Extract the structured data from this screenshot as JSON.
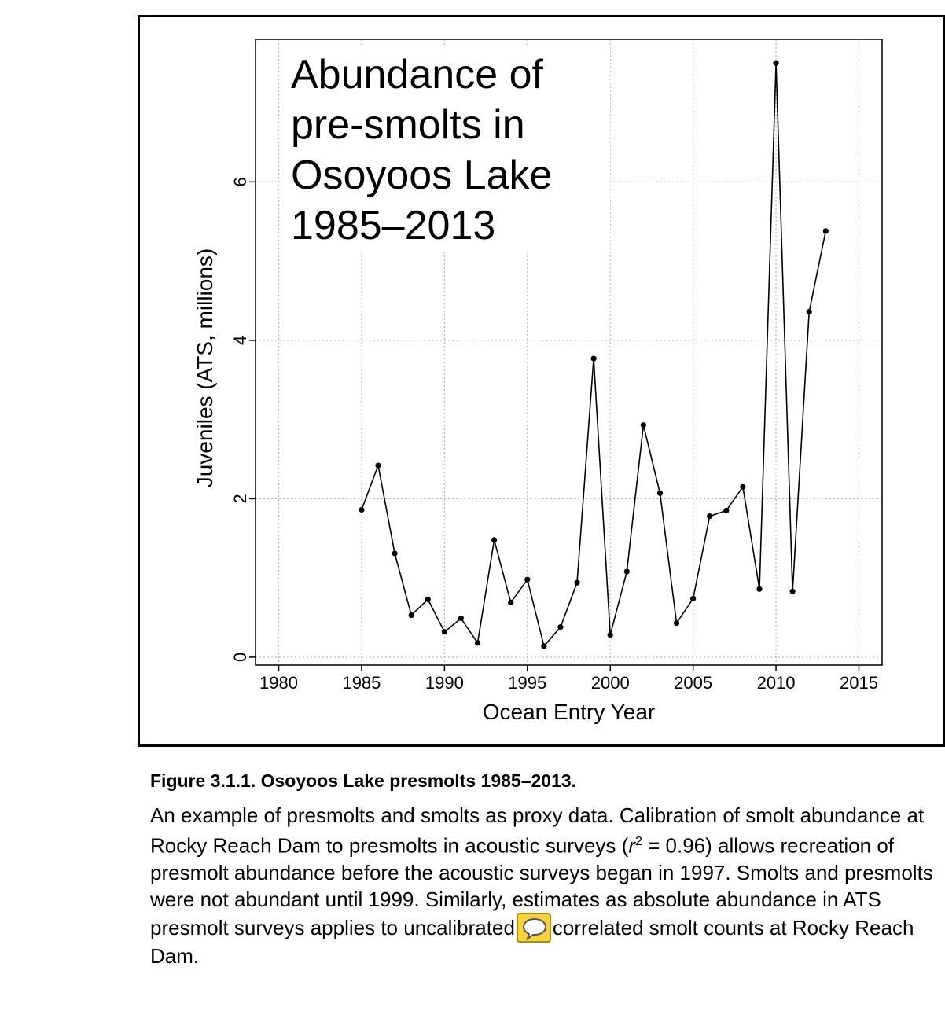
{
  "chart_data": {
    "type": "line",
    "title_lines": [
      "Abundance of",
      "pre-smolts in",
      "Osoyoos Lake",
      "1985–2013"
    ],
    "xlabel": "Ocean Entry Year",
    "ylabel": "Juveniles (ATS, millions)",
    "xlim": [
      1978.6,
      2016.4
    ],
    "ylim": [
      -0.1,
      7.8
    ],
    "xticks": [
      1980,
      1985,
      1990,
      1995,
      2000,
      2005,
      2010,
      2015
    ],
    "yticks": [
      0,
      2,
      4,
      6
    ],
    "grid": "dotted",
    "x": [
      1985,
      1986,
      1987,
      1988,
      1989,
      1990,
      1991,
      1992,
      1993,
      1994,
      1995,
      1996,
      1997,
      1998,
      1999,
      2000,
      2001,
      2002,
      2003,
      2004,
      2005,
      2006,
      2007,
      2008,
      2009,
      2010,
      2011,
      2012,
      2013
    ],
    "y": [
      1.86,
      2.42,
      1.31,
      0.53,
      0.73,
      0.32,
      0.49,
      0.18,
      1.48,
      0.69,
      0.98,
      0.14,
      0.38,
      0.94,
      3.77,
      0.28,
      1.08,
      2.93,
      2.07,
      0.43,
      0.74,
      1.78,
      1.85,
      2.15,
      0.86,
      7.5,
      0.83,
      4.36,
      5.38
    ]
  },
  "caption": {
    "title": "Figure 3.1.1. Osoyoos Lake presmolts 1985–2013.",
    "body_before": "An example of presmolts and smolts as proxy data. Calibration of smolt abundance at Rocky Reach Dam to presmolts in acoustic surveys (",
    "r_symbol": "r",
    "r_exp": "2",
    "body_middle": " = 0.96) allows recreation of presmolt abundance before the acoustic surveys began in 1997. Smolts and presmolts were not abundant until 1999. Similarly, estimates as absolute abundance in ATS presmolt surveys applies to uncalibrated",
    "body_after": "correlated smolt counts at Rocky Reach Dam."
  },
  "icons": {
    "comment": "comment-icon"
  }
}
